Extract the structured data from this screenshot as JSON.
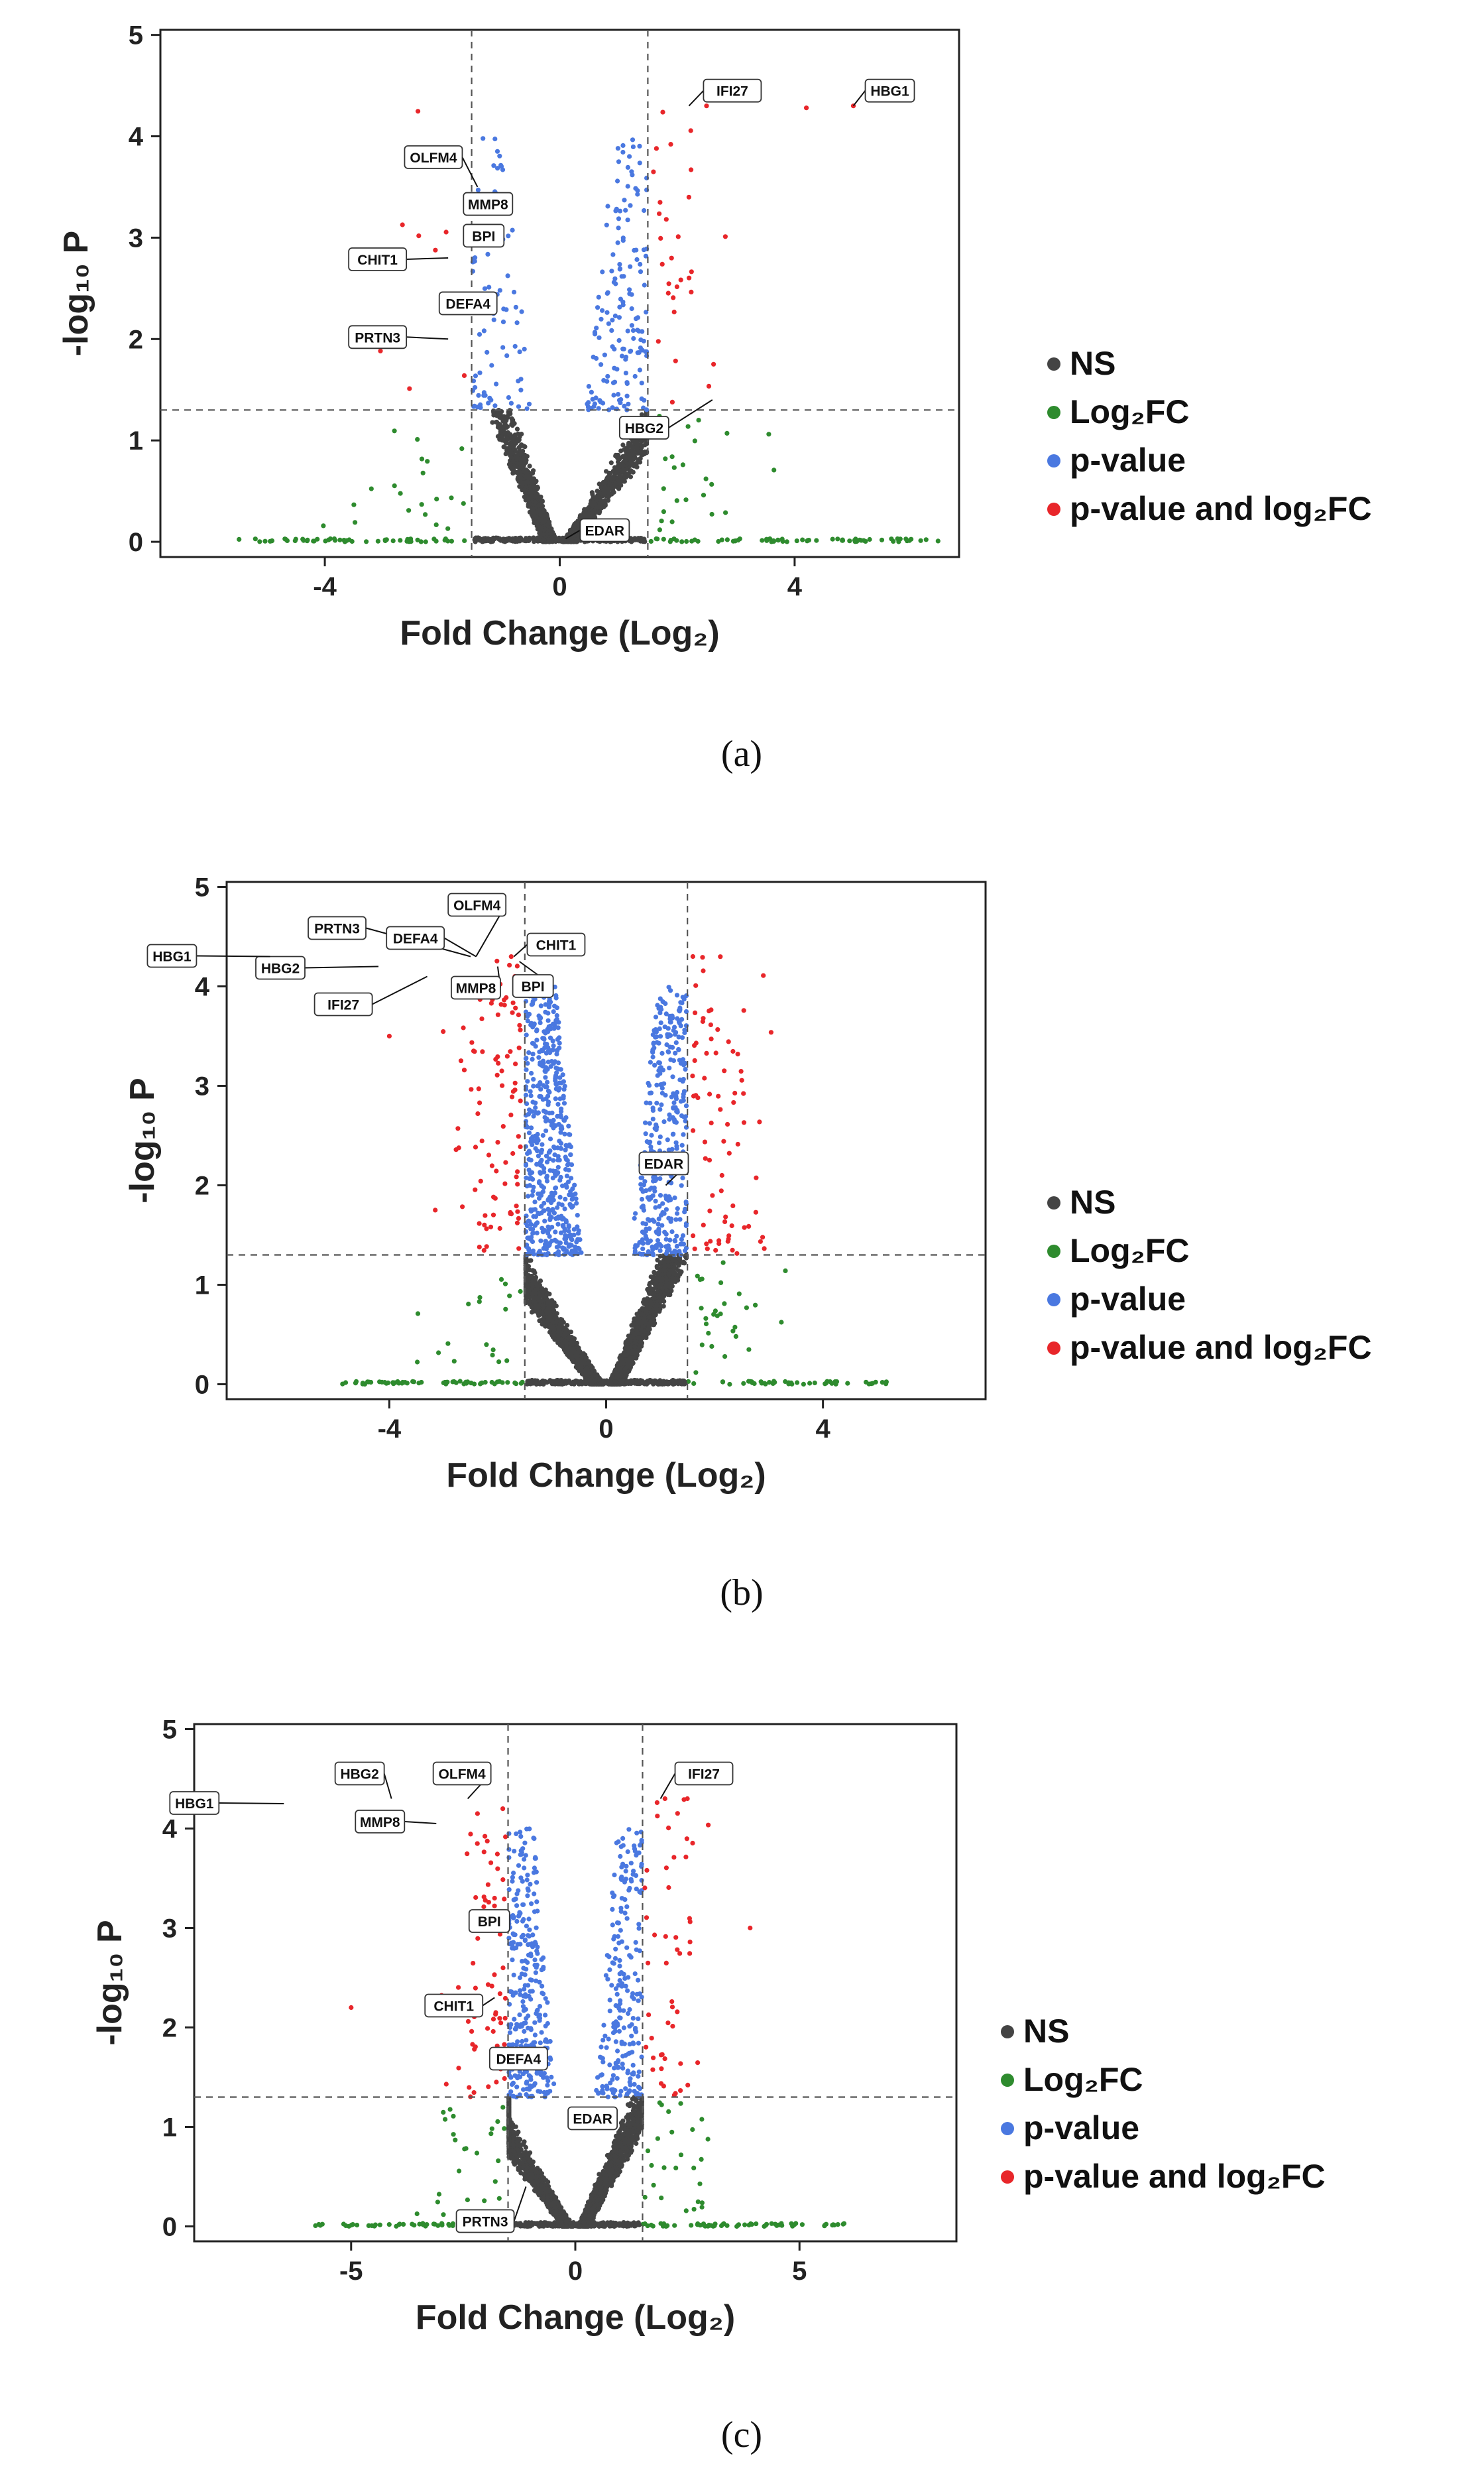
{
  "chart_data": [
    {
      "type": "scatter",
      "panel_label": "(a)",
      "xlabel": "Fold Change (Log₂)",
      "ylabel": "-log₁₀ P",
      "xlim": [
        -6.8,
        6.8
      ],
      "ylim": [
        -0.15,
        5.05
      ],
      "x_ticks": [
        -4,
        0,
        4
      ],
      "x_tick_labels": [
        "-4",
        "0",
        "4"
      ],
      "y_ticks": [
        0,
        1,
        2,
        3,
        4,
        5
      ],
      "y_tick_labels": [
        "0",
        "1",
        "2",
        "3",
        "4",
        "5"
      ],
      "fc_cutoff": 1.5,
      "p_cutoff": 1.3,
      "legend": [
        "NS",
        "Log₂FC",
        "p-value",
        "p-value and log₂FC"
      ],
      "colors": {
        "NS": "#444444",
        "Log2FC": "#2e8b2e",
        "pvalue": "#4a78e0",
        "both": "#e8262a"
      },
      "counts": {
        "ns": 1500,
        "green_axis": 150,
        "green_low": 45,
        "blue": 240,
        "red": 38
      },
      "spread": {
        "left": 1.0,
        "right": 1.9,
        "max_p": 4.3,
        "green_min": -5.5,
        "green_max": 6.5
      },
      "extra_red": [
        [
          4.2,
          4.28
        ],
        [
          5.0,
          4.3
        ],
        [
          2.5,
          4.3
        ],
        [
          2.2,
          3.4
        ]
      ],
      "labels": [
        {
          "gene": "IFI27",
          "x": 2.2,
          "y": 4.3
        },
        {
          "gene": "HBG1",
          "x": 5.0,
          "y": 4.3
        },
        {
          "gene": "OLFM4",
          "x": -1.4,
          "y": 3.5
        },
        {
          "gene": "MMP8",
          "x": -1.3,
          "y": 3.3
        },
        {
          "gene": "BPI",
          "x": -1.3,
          "y": 3.0
        },
        {
          "gene": "CHIT1",
          "x": -1.9,
          "y": 2.8
        },
        {
          "gene": "DEFA4",
          "x": -1.6,
          "y": 2.3
        },
        {
          "gene": "PRTN3",
          "x": -1.9,
          "y": 2.0
        },
        {
          "gene": "HBG2",
          "x": 2.6,
          "y": 1.4
        },
        {
          "gene": "EDAR",
          "x": 0.1,
          "y": 0.03
        }
      ]
    },
    {
      "type": "scatter",
      "panel_label": "(b)",
      "xlabel": "Fold Change (Log₂)",
      "ylabel": "-log₁₀ P",
      "xlim": [
        -7.0,
        7.0
      ],
      "ylim": [
        -0.15,
        5.05
      ],
      "x_ticks": [
        -4,
        0,
        4
      ],
      "x_tick_labels": [
        "-4",
        "0",
        "4"
      ],
      "y_ticks": [
        0,
        1,
        2,
        3,
        4,
        5
      ],
      "y_tick_labels": [
        "0",
        "1",
        "2",
        "3",
        "4",
        "5"
      ],
      "fc_cutoff": 1.5,
      "p_cutoff": 1.3,
      "legend": [
        "NS",
        "Log₂FC",
        "p-value",
        "p-value and log₂FC"
      ],
      "colors": {
        "NS": "#444444",
        "Log2FC": "#2e8b2e",
        "pvalue": "#4a78e0",
        "both": "#e8262a"
      },
      "counts": {
        "ns": 2600,
        "green_axis": 150,
        "green_low": 45,
        "blue": 900,
        "red": 170
      },
      "spread": {
        "left": 2.0,
        "right": 1.3,
        "max_p": 4.3,
        "green_min": -5.0,
        "green_max": 5.2
      },
      "extra_red": [
        [
          1.6,
          4.3
        ],
        [
          -4.0,
          3.5
        ]
      ],
      "labels": [
        {
          "gene": "PRTN3",
          "x": -2.5,
          "y": 4.3
        },
        {
          "gene": "OLFM4",
          "x": -2.4,
          "y": 4.3
        },
        {
          "gene": "DEFA4",
          "x": -2.4,
          "y": 4.3
        },
        {
          "gene": "HBG2",
          "x": -4.2,
          "y": 4.2
        },
        {
          "gene": "CHIT1",
          "x": -1.7,
          "y": 4.3
        },
        {
          "gene": "HBG1",
          "x": -6.2,
          "y": 4.3
        },
        {
          "gene": "IFI27",
          "x": -3.3,
          "y": 4.1
        },
        {
          "gene": "MMP8",
          "x": -2.0,
          "y": 4.2
        },
        {
          "gene": "BPI",
          "x": -1.6,
          "y": 4.25
        },
        {
          "gene": "EDAR",
          "x": 1.1,
          "y": 2.0
        }
      ]
    },
    {
      "type": "scatter",
      "panel_label": "(c)",
      "xlabel": "Fold Change (Log₂)",
      "ylabel": "-log₁₀ P",
      "xlim": [
        -8.5,
        8.5
      ],
      "ylim": [
        -0.15,
        5.05
      ],
      "x_ticks": [
        -5,
        0,
        5
      ],
      "x_tick_labels": [
        "-5",
        "0",
        "5"
      ],
      "y_ticks": [
        0,
        1,
        2,
        3,
        4,
        5
      ],
      "y_tick_labels": [
        "0",
        "1",
        "2",
        "3",
        "4",
        "5"
      ],
      "fc_cutoff": 1.5,
      "p_cutoff": 1.3,
      "legend": [
        "NS",
        "Log₂FC",
        "p-value",
        "p-value and log₂FC"
      ],
      "colors": {
        "NS": "#444444",
        "Log2FC": "#2e8b2e",
        "pvalue": "#4a78e0",
        "both": "#e8262a"
      },
      "counts": {
        "ns": 2200,
        "green_axis": 150,
        "green_low": 50,
        "blue": 520,
        "red": 110
      },
      "spread": {
        "left": 2.3,
        "right": 1.7,
        "max_p": 4.3,
        "green_min": -6.0,
        "green_max": 6.0
      },
      "extra_red": [
        [
          2.0,
          4.3
        ],
        [
          2.5,
          4.3
        ],
        [
          3.9,
          3.0
        ],
        [
          -1.8,
          3.3
        ],
        [
          -5.0,
          2.2
        ]
      ],
      "labels": [
        {
          "gene": "HBG2",
          "x": -4.1,
          "y": 4.3
        },
        {
          "gene": "OLFM4",
          "x": -2.4,
          "y": 4.3
        },
        {
          "gene": "IFI27",
          "x": 1.9,
          "y": 4.3
        },
        {
          "gene": "HBG1",
          "x": -6.5,
          "y": 4.25
        },
        {
          "gene": "MMP8",
          "x": -3.1,
          "y": 4.05
        },
        {
          "gene": "BPI",
          "x": -1.6,
          "y": 3.05
        },
        {
          "gene": "CHIT1",
          "x": -1.8,
          "y": 2.3
        },
        {
          "gene": "DEFA4",
          "x": -1.2,
          "y": 1.6
        },
        {
          "gene": "EDAR",
          "x": 0.8,
          "y": 1.2
        },
        {
          "gene": "PRTN3",
          "x": -1.1,
          "y": 0.4
        }
      ]
    }
  ]
}
